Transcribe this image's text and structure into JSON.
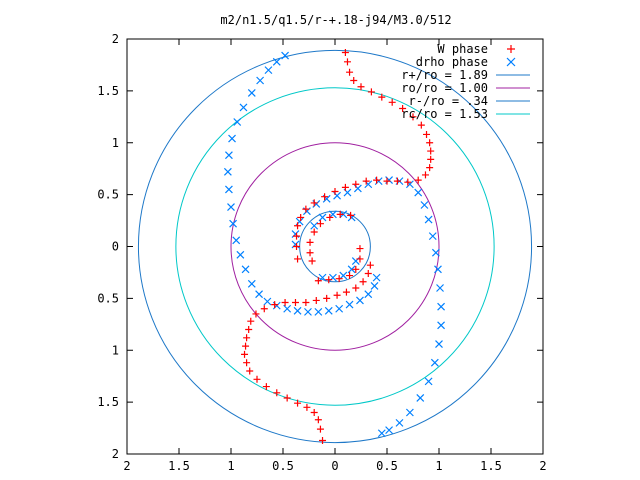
{
  "chart_data": {
    "type": "scatter",
    "title": "m2/n1.5/q1.5/r-+.18-j94/M3.0/512",
    "xlabel": "",
    "ylabel": "",
    "xlim": [
      -2,
      2
    ],
    "ylim": [
      -2,
      2
    ],
    "grid": false,
    "legend_position": "top-right",
    "x_ticks": [
      "2",
      "1.5",
      "1",
      "0.5",
      "0",
      "0.5",
      "1",
      "1.5",
      "2"
    ],
    "y_ticks": [
      "2",
      "1.5",
      "1",
      "0.5",
      "0",
      "0.5",
      "1",
      "1.5",
      "2"
    ],
    "legend": [
      {
        "label": "W phase",
        "color": "#ff0000",
        "marker": "plus"
      },
      {
        "label": "drho phase",
        "color": "#0080ff",
        "marker": "cross"
      },
      {
        "label": "r+/ro = 1.89",
        "color": "#1e78c8",
        "marker": "line"
      },
      {
        "label": "ro/ro = 1.00",
        "color": "#a020a0",
        "marker": "line"
      },
      {
        "label": "r-/ro = .34",
        "color": "#1e78c8",
        "marker": "line"
      },
      {
        "label": "rc/ro = 1.53",
        "color": "#00c8c8",
        "marker": "line"
      }
    ],
    "circles": [
      {
        "name": "r+/ro = 1.89",
        "radius": 1.89,
        "color": "#1e78c8"
      },
      {
        "name": "ro/ro = 1.00",
        "radius": 1.0,
        "color": "#a020a0"
      },
      {
        "name": "r-/ro = .34",
        "radius": 0.34,
        "color": "#1e78c8"
      },
      {
        "name": "rc/ro = 1.53",
        "radius": 1.53,
        "color": "#00c8c8"
      }
    ],
    "series": [
      {
        "name": "W phase",
        "color": "#ff0000",
        "marker": "plus",
        "points": [
          [
            0.1,
            1.87
          ],
          [
            0.12,
            1.78
          ],
          [
            0.14,
            1.68
          ],
          [
            0.18,
            1.6
          ],
          [
            0.25,
            1.54
          ],
          [
            0.35,
            1.49
          ],
          [
            0.45,
            1.44
          ],
          [
            0.55,
            1.39
          ],
          [
            0.65,
            1.33
          ],
          [
            0.75,
            1.25
          ],
          [
            0.83,
            1.17
          ],
          [
            0.88,
            1.08
          ],
          [
            0.91,
            1.0
          ],
          [
            0.92,
            0.92
          ],
          [
            0.92,
            0.84
          ],
          [
            0.91,
            0.76
          ],
          [
            0.87,
            0.69
          ],
          [
            0.8,
            0.64
          ],
          [
            0.7,
            0.62
          ],
          [
            0.6,
            0.63
          ],
          [
            0.5,
            0.63
          ],
          [
            0.4,
            0.64
          ],
          [
            0.3,
            0.63
          ],
          [
            0.2,
            0.6
          ],
          [
            0.1,
            0.57
          ],
          [
            0.0,
            0.53
          ],
          [
            -0.1,
            0.48
          ],
          [
            -0.2,
            0.42
          ],
          [
            -0.28,
            0.36
          ],
          [
            -0.33,
            0.28
          ],
          [
            -0.36,
            0.2
          ],
          [
            -0.37,
            0.1
          ],
          [
            -0.37,
            0.0
          ],
          [
            -0.36,
            -0.12
          ],
          [
            0.34,
            -0.18
          ],
          [
            0.32,
            -0.26
          ],
          [
            0.27,
            -0.34
          ],
          [
            0.2,
            -0.4
          ],
          [
            0.11,
            -0.44
          ],
          [
            0.02,
            -0.47
          ],
          [
            -0.08,
            -0.5
          ],
          [
            -0.18,
            -0.52
          ],
          [
            -0.28,
            -0.54
          ],
          [
            -0.38,
            -0.54
          ],
          [
            -0.48,
            -0.54
          ],
          [
            -0.58,
            -0.56
          ],
          [
            -0.68,
            -0.6
          ],
          [
            -0.76,
            -0.65
          ],
          [
            -0.81,
            -0.72
          ],
          [
            -0.83,
            -0.8
          ],
          [
            -0.85,
            -0.88
          ],
          [
            -0.86,
            -0.96
          ],
          [
            -0.87,
            -1.04
          ],
          [
            -0.85,
            -1.12
          ],
          [
            -0.82,
            -1.2
          ],
          [
            -0.75,
            -1.28
          ],
          [
            -0.66,
            -1.35
          ],
          [
            -0.56,
            -1.41
          ],
          [
            -0.46,
            -1.46
          ],
          [
            -0.36,
            -1.51
          ],
          [
            -0.27,
            -1.55
          ],
          [
            -0.2,
            -1.6
          ],
          [
            -0.16,
            -1.67
          ],
          [
            -0.14,
            -1.76
          ],
          [
            -0.12,
            -1.87
          ],
          [
            0.15,
            0.3
          ],
          [
            0.05,
            0.31
          ],
          [
            -0.05,
            0.28
          ],
          [
            -0.14,
            0.22
          ],
          [
            -0.2,
            0.14
          ],
          [
            -0.24,
            0.04
          ],
          [
            -0.24,
            -0.06
          ],
          [
            -0.22,
            -0.14
          ],
          [
            0.24,
            -0.02
          ],
          [
            0.24,
            -0.12
          ],
          [
            0.2,
            -0.22
          ],
          [
            0.14,
            -0.28
          ],
          [
            0.04,
            -0.31
          ],
          [
            -0.06,
            -0.32
          ],
          [
            -0.16,
            -0.33
          ]
        ]
      },
      {
        "name": "drho phase",
        "color": "#0080ff",
        "marker": "cross",
        "points": [
          [
            -0.48,
            1.84
          ],
          [
            -0.56,
            1.78
          ],
          [
            -0.64,
            1.7
          ],
          [
            -0.72,
            1.6
          ],
          [
            -0.8,
            1.48
          ],
          [
            -0.88,
            1.34
          ],
          [
            -0.94,
            1.2
          ],
          [
            -0.99,
            1.04
          ],
          [
            -1.02,
            0.88
          ],
          [
            -1.03,
            0.72
          ],
          [
            -1.02,
            0.55
          ],
          [
            -1.0,
            0.38
          ],
          [
            -0.98,
            0.22
          ],
          [
            -0.95,
            0.06
          ],
          [
            -0.91,
            -0.08
          ],
          [
            -0.86,
            -0.22
          ],
          [
            -0.8,
            -0.36
          ],
          [
            -0.73,
            -0.46
          ],
          [
            -0.65,
            -0.53
          ],
          [
            -0.56,
            -0.57
          ],
          [
            -0.46,
            -0.6
          ],
          [
            -0.36,
            -0.62
          ],
          [
            -0.26,
            -0.63
          ],
          [
            -0.16,
            -0.63
          ],
          [
            -0.06,
            -0.62
          ],
          [
            0.04,
            -0.6
          ],
          [
            0.14,
            -0.56
          ],
          [
            0.24,
            -0.52
          ],
          [
            0.32,
            -0.46
          ],
          [
            0.38,
            -0.38
          ],
          [
            0.4,
            -0.3
          ],
          [
            -0.38,
            0.02
          ],
          [
            -0.38,
            0.12
          ],
          [
            -0.34,
            0.24
          ],
          [
            -0.27,
            0.34
          ],
          [
            -0.18,
            0.41
          ],
          [
            -0.08,
            0.46
          ],
          [
            0.02,
            0.49
          ],
          [
            0.12,
            0.52
          ],
          [
            0.22,
            0.56
          ],
          [
            0.32,
            0.6
          ],
          [
            0.42,
            0.63
          ],
          [
            0.52,
            0.64
          ],
          [
            0.62,
            0.63
          ],
          [
            0.72,
            0.6
          ],
          [
            0.8,
            0.52
          ],
          [
            0.86,
            0.4
          ],
          [
            0.9,
            0.26
          ],
          [
            0.94,
            0.1
          ],
          [
            0.97,
            -0.06
          ],
          [
            0.99,
            -0.22
          ],
          [
            1.01,
            -0.4
          ],
          [
            1.02,
            -0.58
          ],
          [
            1.02,
            -0.76
          ],
          [
            1.0,
            -0.94
          ],
          [
            0.96,
            -1.12
          ],
          [
            0.9,
            -1.3
          ],
          [
            0.82,
            -1.46
          ],
          [
            0.72,
            -1.6
          ],
          [
            0.62,
            -1.7
          ],
          [
            0.52,
            -1.77
          ],
          [
            0.45,
            -1.8
          ],
          [
            -0.2,
            0.2
          ],
          [
            -0.12,
            0.28
          ],
          [
            -0.02,
            0.31
          ],
          [
            0.08,
            0.31
          ],
          [
            0.16,
            0.28
          ],
          [
            0.2,
            -0.14
          ],
          [
            0.16,
            -0.22
          ],
          [
            0.08,
            -0.28
          ],
          [
            -0.02,
            -0.3
          ],
          [
            -0.12,
            -0.3
          ]
        ]
      }
    ]
  }
}
